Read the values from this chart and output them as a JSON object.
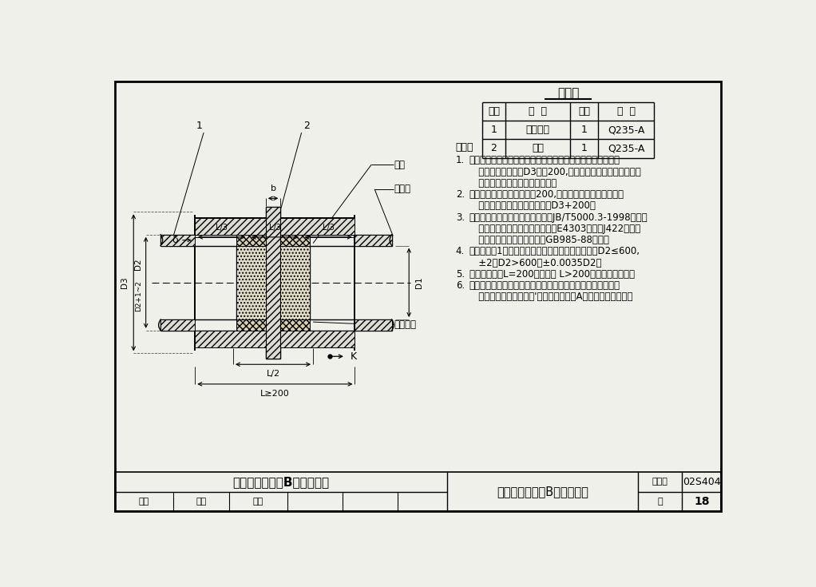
{
  "title": "刚性防水套管（B型）安装图",
  "atlas_number": "02S404",
  "page": "18",
  "bg_color": "#f0f0eb",
  "materials_table": {
    "title": "材料表",
    "headers": [
      "序号",
      "名  称",
      "数量",
      "材  料"
    ],
    "rows": [
      [
        "1",
        "钢制套管",
        "1",
        "Q235-A"
      ],
      [
        "2",
        "翼环",
        "1",
        "Q235-A"
      ]
    ]
  },
  "notes_lines": [
    [
      "1.",
      "套管穿墙处如遇非混凝土墙壁时，应改用混凝土墙壁，其浇注"
    ],
    [
      "",
      "   围应比翼环直径（D3）大200,而且必须将套管一次浇固于墙"
    ],
    [
      "",
      "   内．套管内的填料应紧密捣实．"
    ],
    [
      "2.",
      "穿管处混凝土墙厚应不小于200,否则应使墙壁一边或两边加"
    ],
    [
      "",
      "   厚．加厚部分的直径至少应为D3+200．"
    ],
    [
      "3.",
      "焊接结构尺寸公差与形位公差按照JB/T5000.3-1998执行．"
    ],
    [
      "",
      "   焊接采用手工电弧焊，焊条型号E4303，牌号J422．焊缝"
    ],
    [
      "",
      "   坡口的基本形式与尺寸按照GB985-88执行．"
    ],
    [
      "4.",
      "当套管（件1）采用卷制成型时，周长允许偏差为：D2≤600,"
    ],
    [
      "",
      "   ±2，D2>600，±0.0035D2．"
    ],
    [
      "5.",
      "套管的重量以L=200计算，当 L>200时，应另行计算．"
    ],
    [
      "6.",
      "当用于饮用水水池安装时，应在石棉水泥与水接触侧嵌填无毒"
    ],
    [
      "",
      "   密封膏，做法见本图集'刚性防水套管（A型）安装图（二）．"
    ]
  ]
}
